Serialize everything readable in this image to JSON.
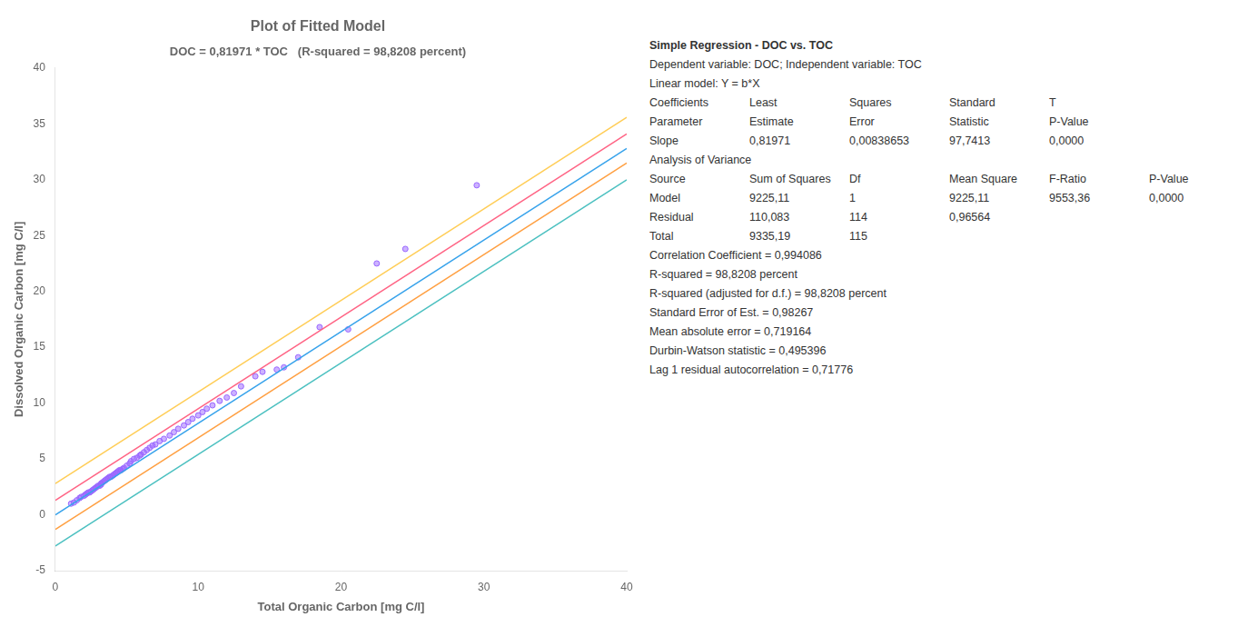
{
  "chart_data": {
    "type": "scatter",
    "title": "Plot of Fitted Model",
    "subtitle": "DOC = 0,81971 * TOC   (R-squared = 98,8208 percent)",
    "x_label": "Total Organic Carbon [mg C/l]",
    "y_label": "Dissolved Organic Carbon [mg C/l]",
    "xlim": [
      0,
      40
    ],
    "ylim": [
      -5,
      40
    ],
    "xticks": [
      0,
      10,
      20,
      30,
      40
    ],
    "yticks": [
      -5,
      0,
      5,
      10,
      15,
      20,
      25,
      30,
      35,
      40
    ],
    "grid": false,
    "series": [
      {
        "type": "line",
        "x": [
          0,
          40
        ],
        "values": [
          0,
          32.7884
        ]
      },
      {
        "type": "line",
        "x": [
          0,
          40
        ],
        "values": [
          1.3,
          34.0884
        ]
      },
      {
        "type": "line",
        "x": [
          0,
          40
        ],
        "values": [
          -1.3,
          31.4884
        ]
      },
      {
        "type": "line",
        "x": [
          0,
          40
        ],
        "values": [
          2.8,
          35.5884
        ]
      },
      {
        "type": "line",
        "x": [
          0,
          40
        ],
        "values": [
          -2.8,
          29.9884
        ]
      },
      {
        "type": "scatter",
        "marker": "circle",
        "x": [
          1.1,
          1.3,
          1.5,
          1.7,
          1.8,
          2.0,
          2.1,
          2.2,
          2.3,
          2.4,
          2.5,
          2.6,
          2.7,
          2.8,
          2.9,
          3.0,
          3.1,
          3.2,
          3.2,
          3.3,
          3.4,
          3.5,
          3.6,
          3.7,
          3.8,
          3.9,
          4.0,
          4.1,
          4.2,
          4.3,
          4.4,
          4.5,
          4.6,
          4.7,
          4.8,
          5.0,
          5.2,
          5.3,
          5.5,
          5.7,
          5.9,
          6.0,
          6.2,
          6.4,
          6.6,
          6.8,
          7.0,
          7.3,
          7.6,
          8.0,
          8.3,
          8.6,
          9.0,
          9.3,
          9.6,
          10.0,
          10.3,
          10.6,
          11.0,
          11.5,
          12.0,
          12.5,
          13.0,
          14.0,
          14.5,
          15.5,
          16.0,
          17.0,
          18.5,
          20.5,
          22.5,
          24.5,
          29.5
        ],
        "values": [
          1.0,
          1.1,
          1.3,
          1.5,
          1.6,
          1.7,
          1.8,
          1.9,
          2.0,
          2.0,
          2.1,
          2.2,
          2.3,
          2.4,
          2.5,
          2.6,
          2.6,
          2.7,
          2.8,
          2.9,
          3.0,
          3.1,
          3.2,
          3.3,
          3.4,
          3.4,
          3.5,
          3.6,
          3.7,
          3.8,
          3.9,
          4.0,
          4.0,
          4.1,
          4.2,
          4.4,
          4.6,
          4.8,
          5.0,
          5.1,
          5.3,
          5.4,
          5.6,
          5.8,
          6.0,
          6.2,
          6.3,
          6.6,
          6.8,
          7.1,
          7.4,
          7.7,
          8.0,
          8.3,
          8.6,
          8.9,
          9.2,
          9.5,
          9.8,
          10.2,
          10.5,
          10.9,
          11.5,
          12.4,
          12.8,
          13.0,
          13.2,
          14.1,
          16.8,
          16.6,
          22.5,
          23.8,
          29.5
        ]
      }
    ],
    "annotations": [
      [
        "Simple Regression - DOC vs. TOC"
      ],
      [
        "Dependent variable: DOC; Independent variable: TOC"
      ],
      [
        "Linear model: Y = b*X"
      ],
      [
        "Coefficients",
        "Least",
        "Squares",
        "Standard",
        "T"
      ],
      [
        "Parameter",
        "Estimate",
        "Error",
        "Statistic",
        "P-Value"
      ],
      [
        "Slope",
        "0,81971",
        "0,00838653",
        "97,7413",
        "0,0000"
      ],
      [
        "Analysis of Variance"
      ],
      [
        "Source",
        "Sum of Squares",
        "Df",
        "Mean Square",
        "F-Ratio",
        "P-Value"
      ],
      [
        "Model",
        "9225,11",
        "1",
        "9225,11",
        "9553,36",
        "0,0000"
      ],
      [
        "Residual",
        "110,083",
        "114",
        "0,96564"
      ],
      [
        "Total",
        "9335,19",
        "115"
      ],
      [
        "Correlation Coefficient = 0,994086"
      ],
      [
        "R-squared = 98,8208 percent"
      ],
      [
        "R-squared (adjusted for d.f.) = 98,8208 percent"
      ],
      [
        "Standard Error of Est. = 0,98267"
      ],
      [
        "Mean absolute error = 0,719164"
      ],
      [
        "Durbin-Watson statistic = 0,495396"
      ],
      [
        "Lag 1 residual autocorrelation = 0,71776"
      ]
    ]
  }
}
